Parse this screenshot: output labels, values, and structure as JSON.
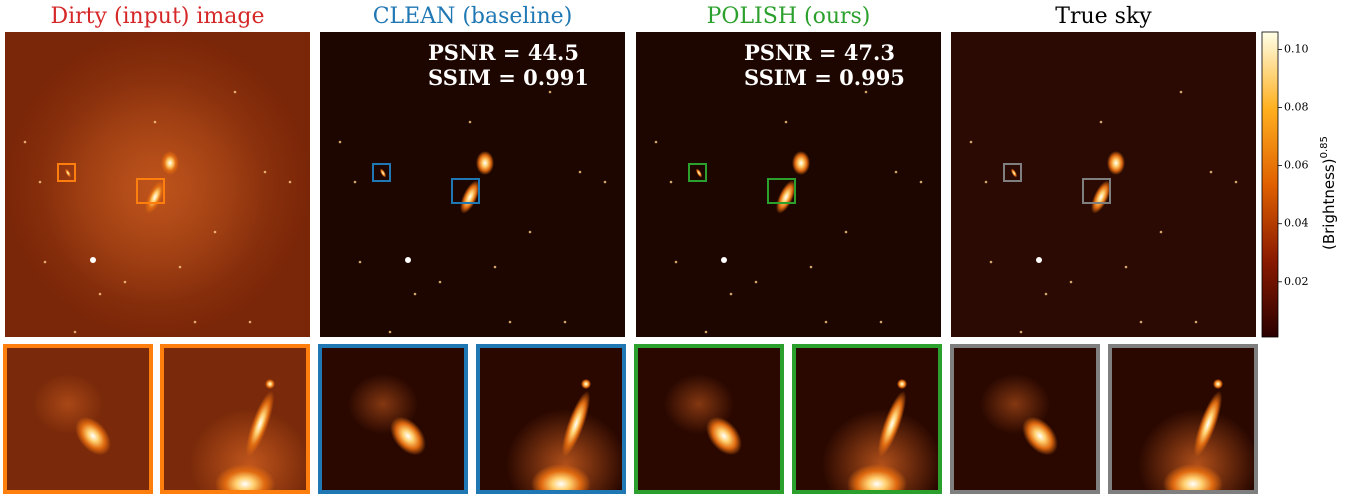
{
  "panels": [
    {
      "title": "Dirty (input) image",
      "title_color": "#d62728",
      "box_color": "#ff7f0e"
    },
    {
      "title": "CLEAN (baseline)",
      "title_color": "#1f77b4",
      "box_color": "#1f77b4",
      "metrics": [
        "PSNR = 44.5",
        "SSIM = 0.991"
      ]
    },
    {
      "title": "POLISH (ours)",
      "title_color": "#2ca02c",
      "box_color": "#2ca02c",
      "metrics": [
        "PSNR = 47.3",
        "SSIM = 0.995"
      ]
    },
    {
      "title": "True sky",
      "title_color": "#000000",
      "box_color": "#7f7f7f"
    }
  ],
  "colorbar": {
    "label": "(Brightness)",
    "exponent": "0.85",
    "lim": [
      0.001,
      0.106
    ],
    "ticks": [
      0.02,
      0.04,
      0.06,
      0.08,
      {
        "value": 0.1,
        "label": "0.10"
      }
    ]
  }
}
